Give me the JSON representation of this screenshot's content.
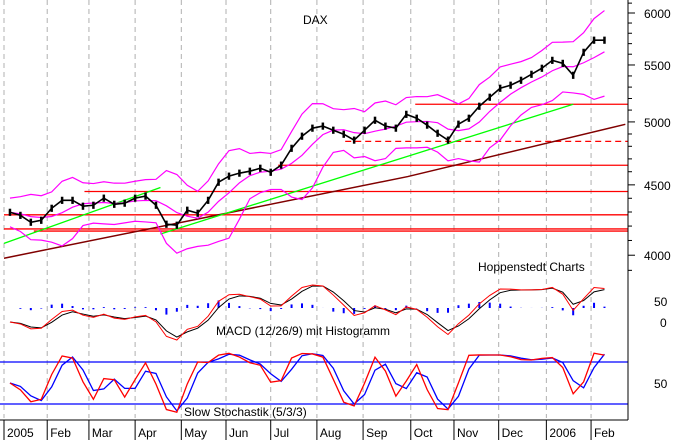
{
  "chart_data": {
    "type": "line",
    "title": "DAX",
    "credit": "Hoppenstedt Charts",
    "y_scale": "log",
    "ylim": [
      3850,
      6150
    ],
    "y_ticks": [
      4000,
      4500,
      5000,
      5500,
      6000
    ],
    "x_tick_labels": [
      "2005",
      "Feb",
      "Mar",
      "Apr",
      "May",
      "Jun",
      "Jul",
      "Aug",
      "Sep",
      "Oct",
      "Nov",
      "Dec",
      "2006",
      "Feb"
    ],
    "x_tick_dates": [
      "2005-01-03",
      "2005-02-01",
      "2005-03-01",
      "2005-04-01",
      "2005-05-02",
      "2005-06-01",
      "2005-07-01",
      "2005-08-01",
      "2005-09-01",
      "2005-10-03",
      "2005-11-01",
      "2005-12-01",
      "2006-01-02",
      "2006-02-01"
    ],
    "grid": "vertical dashed at month starts",
    "colors": {
      "price": "#000000",
      "bollinger": "#ff00ff",
      "trend": "#00ff00",
      "moving_average": "#800000",
      "levels": "#ff0000",
      "macd": "#ff0000",
      "signal": "#000000",
      "histogram": "#0000ff",
      "stoch_k": "#ff0000",
      "stoch_d": "#0000ff",
      "stoch_bounds": "#0000ff"
    },
    "price": {
      "start_date": "2005-01-07",
      "interval": "weekly",
      "values": [
        4298,
        4276,
        4227,
        4241,
        4327,
        4385,
        4385,
        4342,
        4349,
        4401,
        4356,
        4364,
        4401,
        4416,
        4349,
        4213,
        4206,
        4313,
        4291,
        4385,
        4520,
        4566,
        4589,
        4604,
        4627,
        4596,
        4651,
        4784,
        4882,
        4948,
        4965,
        4931,
        4898,
        4850,
        4931,
        5014,
        4965,
        4948,
        5064,
        5031,
        4973,
        4906,
        4850,
        4981,
        5031,
        5133,
        5211,
        5290,
        5317,
        5361,
        5415,
        5470,
        5543,
        5515,
        5406,
        5618,
        5733,
        5733
      ]
    },
    "moving_average": [
      [
        "2005-01-03",
        3980
      ],
      [
        "2005-10-01",
        4563
      ],
      [
        "2006-02-24",
        4980
      ]
    ],
    "trend_lines": [
      [
        [
          "2005-01-03",
          4080
        ],
        [
          "2005-04-18",
          4480
        ]
      ],
      [
        [
          "2005-04-18",
          4145
        ],
        [
          "2006-01-20",
          5150
        ]
      ]
    ],
    "levels": [
      {
        "value": 5150,
        "from": "2005-10-06",
        "style": "solid"
      },
      {
        "value": 4840,
        "from": "2005-08-20",
        "style": "dashed"
      },
      {
        "value": 4650,
        "from": "2005-07-06",
        "style": "solid"
      },
      {
        "value": 4450,
        "from": "2005-02-26",
        "style": "solid"
      },
      {
        "value": 4280,
        "from": "2005-01-03",
        "style": "solid"
      },
      {
        "value": 4180,
        "from": "2005-01-03",
        "style": "solid"
      },
      {
        "value": 4165,
        "from": "2005-01-23",
        "style": "solid"
      }
    ],
    "macd": {
      "label": "MACD (12/26/9) mit Histogramm",
      "y_ticks": [
        50,
        0
      ]
    },
    "stochastic": {
      "label": "Slow Stochastik (5/3/3)",
      "y_ticks": [
        50
      ],
      "bounds": [
        80,
        20
      ]
    }
  }
}
